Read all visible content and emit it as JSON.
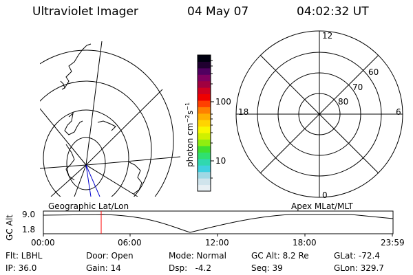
{
  "header": {
    "title": "Ultraviolet Imager",
    "date": "04 May 07",
    "time": "04:02:32 UT"
  },
  "colorbar": {
    "label": "photon cm",
    "label_sup1": "−2",
    "label_mid": "s",
    "label_sup2": "−1",
    "ticks": [
      "100",
      "10"
    ],
    "colors": [
      "#e8f0f4",
      "#d0e4ec",
      "#a0d8e4",
      "#40d0e0",
      "#30d8b0",
      "#30e070",
      "#40e030",
      "#90ee10",
      "#d0f000",
      "#f8f800",
      "#ffd400",
      "#ffb000",
      "#ff8000",
      "#ff4000",
      "#f00000",
      "#d00020",
      "#a00040",
      "#800060",
      "#500060",
      "#200030",
      "#000010"
    ]
  },
  "polar_plot": {
    "labels": {
      "top": "12",
      "right": "6",
      "left": "18",
      "bottom": "0"
    },
    "rings": [
      "60",
      "70",
      "80"
    ]
  },
  "timeline": {
    "geo_label": "Geographic Lat/Lon",
    "apex_label": "Apex MLat/MLT",
    "yaxis_label": "GC Alt",
    "ymax": "9.0",
    "ymin": "1.8",
    "xticks": [
      "00:00",
      "06:00",
      "12:00",
      "18:00",
      "23:59"
    ],
    "marker_color": "#ff0000"
  },
  "info": {
    "flt": "Flt: LBHL",
    "ip": "IP: 36.0",
    "door": "Door: Open",
    "gain": "Gain: 14",
    "mode": "Mode: Normal",
    "dsp": "Dsp:   -4.2",
    "gcalt": "GC Alt: 8.2 Re",
    "seq": "Seq: 39",
    "glat": "GLat: -72.4",
    "glon": "GLon: 329.7"
  }
}
